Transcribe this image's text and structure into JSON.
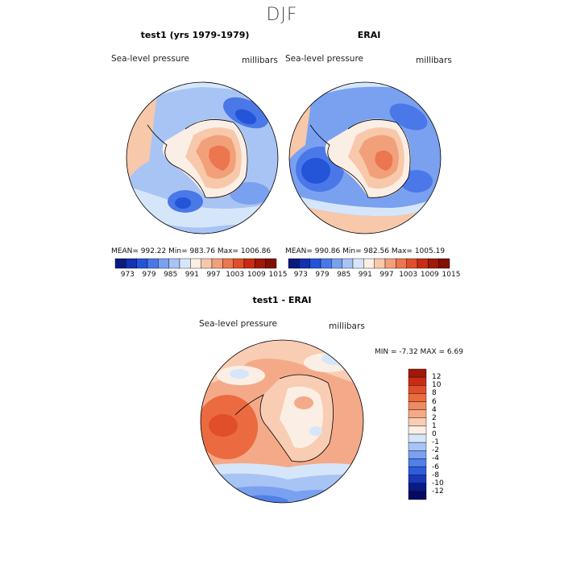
{
  "main_title": "DJF",
  "panels": [
    {
      "title": "test1 (yrs 1979-1979)",
      "variable": "Sea-level pressure",
      "units": "millibars",
      "stats": "MEAN= 992.22   Min= 983.76   Max= 1006.86"
    },
    {
      "title": "ERAI",
      "variable": "Sea-level pressure",
      "units": "millibars",
      "stats": "MEAN= 990.86   Min= 982.56   Max= 1005.19"
    },
    {
      "title": "test1 - ERAI",
      "variable": "Sea-level pressure",
      "units": "millibars",
      "stats": "MIN =  -7.32  MAX =   6.69"
    }
  ],
  "colorbar_main": {
    "labels": [
      "973",
      "979",
      "985",
      "991",
      "997",
      "1003",
      "1009",
      "1015"
    ],
    "colors": [
      "#0a1a80",
      "#1530b0",
      "#2454d8",
      "#4a78e8",
      "#7aa0f0",
      "#a8c4f4",
      "#d6e6fa",
      "#fbeee4",
      "#f8c8aa",
      "#f2a07a",
      "#ec7650",
      "#e04e2a",
      "#c82c14",
      "#a01808",
      "#801000"
    ]
  },
  "colorbar_diff": {
    "labels": [
      "12",
      "10",
      "8",
      "6",
      "4",
      "2",
      "1",
      "0",
      "-1",
      "-2",
      "-4",
      "-6",
      "-8",
      "-10",
      "-12"
    ],
    "colors": [
      "#a01808",
      "#c82c14",
      "#e04e2a",
      "#ec6a40",
      "#f08a60",
      "#f4aa88",
      "#f8cdb4",
      "#fbeee4",
      "#d6e6fa",
      "#a8c4f4",
      "#7aa0f0",
      "#5080e8",
      "#2e5cdc",
      "#1838b8",
      "#0a1a88",
      "#050c60"
    ]
  }
}
